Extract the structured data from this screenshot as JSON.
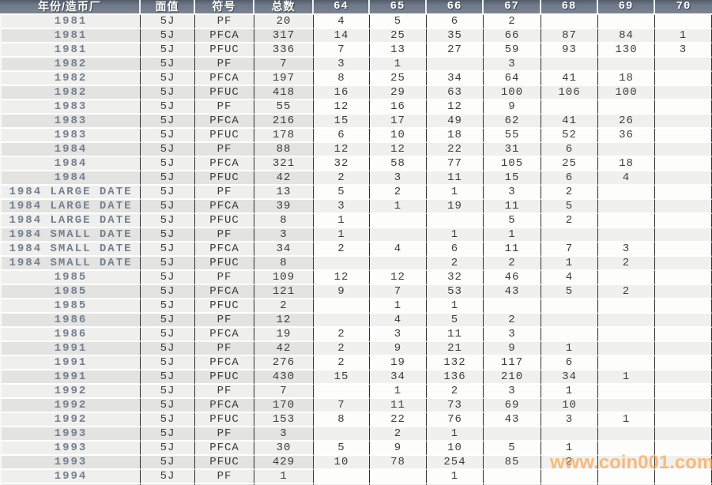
{
  "header": {
    "columns": [
      "年份/造币厂",
      "面值",
      "符号",
      "总数",
      "64",
      "65",
      "66",
      "67",
      "68",
      "69",
      "70"
    ]
  },
  "table": {
    "rows": [
      [
        "1981",
        "5J",
        "PF",
        "20",
        "4",
        "5",
        "6",
        "2",
        "",
        "",
        ""
      ],
      [
        "1981",
        "5J",
        "PFCA",
        "317",
        "14",
        "25",
        "35",
        "66",
        "87",
        "84",
        "1"
      ],
      [
        "1981",
        "5J",
        "PFUC",
        "336",
        "7",
        "13",
        "27",
        "59",
        "93",
        "130",
        "3"
      ],
      [
        "1982",
        "5J",
        "PF",
        "7",
        "3",
        "1",
        "",
        "3",
        "",
        "",
        ""
      ],
      [
        "1982",
        "5J",
        "PFCA",
        "197",
        "8",
        "25",
        "34",
        "64",
        "41",
        "18",
        ""
      ],
      [
        "1982",
        "5J",
        "PFUC",
        "418",
        "16",
        "29",
        "63",
        "100",
        "106",
        "100",
        ""
      ],
      [
        "1983",
        "5J",
        "PF",
        "55",
        "12",
        "16",
        "12",
        "9",
        "",
        "",
        ""
      ],
      [
        "1983",
        "5J",
        "PFCA",
        "216",
        "15",
        "17",
        "49",
        "62",
        "41",
        "26",
        ""
      ],
      [
        "1983",
        "5J",
        "PFUC",
        "178",
        "6",
        "10",
        "18",
        "55",
        "52",
        "36",
        ""
      ],
      [
        "1984",
        "5J",
        "PF",
        "88",
        "12",
        "12",
        "22",
        "31",
        "6",
        "",
        ""
      ],
      [
        "1984",
        "5J",
        "PFCA",
        "321",
        "32",
        "58",
        "77",
        "105",
        "25",
        "18",
        ""
      ],
      [
        "1984",
        "5J",
        "PFUC",
        "42",
        "2",
        "3",
        "11",
        "15",
        "6",
        "4",
        ""
      ],
      [
        "1984 LARGE DATE",
        "5J",
        "PF",
        "13",
        "5",
        "2",
        "1",
        "3",
        "2",
        "",
        ""
      ],
      [
        "1984 LARGE DATE",
        "5J",
        "PFCA",
        "39",
        "3",
        "1",
        "19",
        "11",
        "5",
        "",
        ""
      ],
      [
        "1984 LARGE DATE",
        "5J",
        "PFUC",
        "8",
        "1",
        "",
        "",
        "5",
        "2",
        "",
        ""
      ],
      [
        "1984 SMALL DATE",
        "5J",
        "PF",
        "3",
        "1",
        "",
        "1",
        "1",
        "",
        "",
        ""
      ],
      [
        "1984 SMALL DATE",
        "5J",
        "PFCA",
        "34",
        "2",
        "4",
        "6",
        "11",
        "7",
        "3",
        ""
      ],
      [
        "1984 SMALL DATE",
        "5J",
        "PFUC",
        "8",
        "",
        "",
        "2",
        "2",
        "1",
        "2",
        ""
      ],
      [
        "1985",
        "5J",
        "PF",
        "109",
        "12",
        "12",
        "32",
        "46",
        "4",
        "",
        ""
      ],
      [
        "1985",
        "5J",
        "PFCA",
        "121",
        "9",
        "7",
        "53",
        "43",
        "5",
        "2",
        ""
      ],
      [
        "1985",
        "5J",
        "PFUC",
        "2",
        "",
        "1",
        "1",
        "",
        "",
        "",
        ""
      ],
      [
        "1986",
        "5J",
        "PF",
        "12",
        "",
        "4",
        "5",
        "2",
        "",
        "",
        ""
      ],
      [
        "1986",
        "5J",
        "PFCA",
        "19",
        "2",
        "3",
        "11",
        "3",
        "",
        "",
        ""
      ],
      [
        "1991",
        "5J",
        "PF",
        "42",
        "2",
        "9",
        "21",
        "9",
        "1",
        "",
        ""
      ],
      [
        "1991",
        "5J",
        "PFCA",
        "276",
        "2",
        "19",
        "132",
        "117",
        "6",
        "",
        ""
      ],
      [
        "1991",
        "5J",
        "PFUC",
        "430",
        "15",
        "34",
        "136",
        "210",
        "34",
        "1",
        ""
      ],
      [
        "1992",
        "5J",
        "PF",
        "7",
        "",
        "1",
        "2",
        "3",
        "1",
        "",
        ""
      ],
      [
        "1992",
        "5J",
        "PFCA",
        "170",
        "7",
        "11",
        "73",
        "69",
        "10",
        "",
        ""
      ],
      [
        "1992",
        "5J",
        "PFUC",
        "153",
        "8",
        "22",
        "76",
        "43",
        "3",
        "1",
        ""
      ],
      [
        "1993",
        "5J",
        "PF",
        "3",
        "",
        "2",
        "1",
        "",
        "",
        "",
        ""
      ],
      [
        "1993",
        "5J",
        "PFCA",
        "30",
        "5",
        "9",
        "10",
        "5",
        "1",
        "",
        ""
      ],
      [
        "1993",
        "5J",
        "PFUC",
        "429",
        "10",
        "78",
        "254",
        "85",
        "2",
        "",
        ""
      ],
      [
        "1994",
        "5J",
        "PF",
        "1",
        "",
        "",
        "1",
        "",
        "",
        "",
        ""
      ]
    ]
  },
  "watermark": {
    "text": "www.coin001.com"
  },
  "colors": {
    "header_bg": "#6d7787",
    "header_text": "#ffffff",
    "grid_dark": "#2d2d2d",
    "row_gap": "#ffffff",
    "stripe_left_odd": "#efefee",
    "stripe_left_even": "#e3e3e2",
    "stripe_grade_odd": "#fdfdfc",
    "stripe_grade_even": "#f0f0ef",
    "year_text": "#747f8e",
    "cell_text": "#3e3e3e",
    "watermark": "#f6a24a"
  }
}
